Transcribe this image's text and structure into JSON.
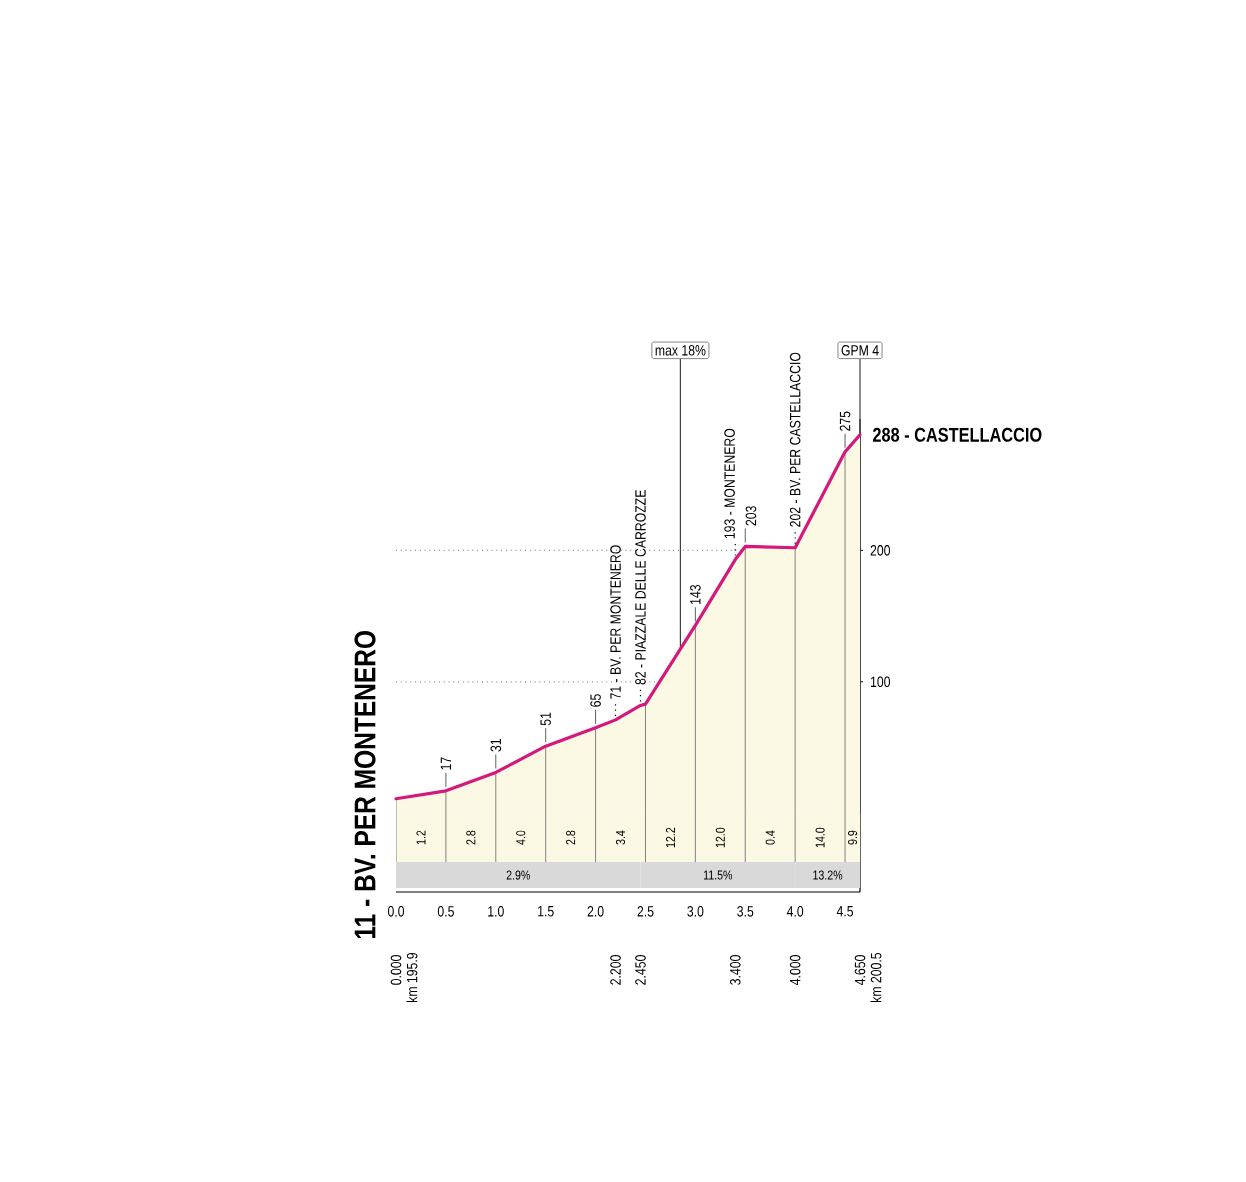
{
  "chart_data": {
    "type": "area",
    "x": [
      0,
      0.5,
      1.0,
      1.5,
      2.0,
      2.2,
      2.45,
      2.5,
      3.0,
      3.4,
      3.5,
      4.0,
      4.5,
      4.65
    ],
    "values": [
      11,
      17,
      31,
      51,
      65,
      71,
      82,
      83,
      143,
      193,
      203,
      202,
      275,
      288
    ],
    "value_labels": [
      "11 - BV. PER MONTENERO",
      "17",
      "31",
      "51",
      "65",
      "71 - BV. PER MONTENERO",
      "82 - PIAZZALE DELLE CARROZZE",
      null,
      "143",
      "193 - MONTENERO",
      "203",
      "202 - BV. PER CASTELLACCIO",
      "275",
      "288 - CASTELLACCIO"
    ],
    "color": "#d4187c",
    "xlim": [
      0,
      4.65
    ],
    "xticks": [
      {
        "value": 0,
        "label": "0.0"
      },
      0.5,
      {
        "value": 1,
        "label": "1.0"
      },
      1.5,
      {
        "value": 2,
        "label": "2.0"
      },
      2.5,
      {
        "value": 3,
        "label": "3.0"
      },
      3.5,
      {
        "value": 4,
        "label": "4.0"
      },
      4.5
    ],
    "x2lim": [
      0,
      4.65
    ],
    "x2ticks": [
      {
        "value": 0,
        "label": "0.000"
      },
      {
        "value": 2.2,
        "label": "2.200"
      },
      {
        "value": 2.45,
        "label": "2.450"
      },
      {
        "value": 3.4,
        "label": "3.400"
      },
      {
        "value": 4,
        "label": "4.000"
      },
      {
        "value": 4.65,
        "label": "4.650"
      }
    ],
    "ylim": [
      -60,
      300
    ],
    "yticks": [
      100,
      200
    ],
    "grid": true,
    "bands": [
      {
        "axis": "x",
        "from": 0,
        "to": 0.5,
        "label": "1.2",
        "color": "#fbf9e3"
      },
      {
        "axis": "x",
        "from": 0.5,
        "to": 1.0,
        "label": "2.8",
        "color": "#fbf9e3"
      },
      {
        "axis": "x",
        "from": 1.0,
        "to": 1.5,
        "label": "4.0",
        "color": "#fbf9e3"
      },
      {
        "axis": "x",
        "from": 1.5,
        "to": 2.0,
        "label": "2.8",
        "color": "#fbf9e3"
      },
      {
        "axis": "x",
        "from": 2.0,
        "to": 2.5,
        "label": "3.4",
        "color": "#fbf9e3"
      },
      {
        "axis": "x",
        "from": 2.5,
        "to": 3.0,
        "label": "12.2",
        "color": "#fbf9e3"
      },
      {
        "axis": "x",
        "from": 3.0,
        "to": 3.5,
        "label": "12.0",
        "color": "#fbf9e3"
      },
      {
        "axis": "x",
        "from": 3.5,
        "to": 4.0,
        "label": "0.4",
        "color": "#fbf9e3"
      },
      {
        "axis": "x",
        "from": 4.0,
        "to": 4.5,
        "label": "14.0",
        "color": "#fbf9e3"
      },
      {
        "axis": "x",
        "from": 4.5,
        "to": 4.65,
        "label": "9.9",
        "color": "#fbf9e3"
      },
      {
        "axis": "x",
        "from": 0,
        "to": 2.45,
        "label": "2.9%",
        "color": "#d9d9d9"
      },
      {
        "axis": "x",
        "from": 2.45,
        "to": 4.0,
        "label": "11.5%",
        "color": "#d9d9d9"
      },
      {
        "axis": "x",
        "from": 4.0,
        "to": 4.65,
        "label": "13.2%",
        "color": "#d9d9d9"
      }
    ],
    "ref_lines": [
      {
        "axis": "x",
        "value": 2.85,
        "label": "max 18%"
      },
      {
        "axis": "x",
        "value": 4.65,
        "label": "GPM 4"
      }
    ],
    "annotations": [
      "km 195.9",
      "km 200.5"
    ]
  }
}
